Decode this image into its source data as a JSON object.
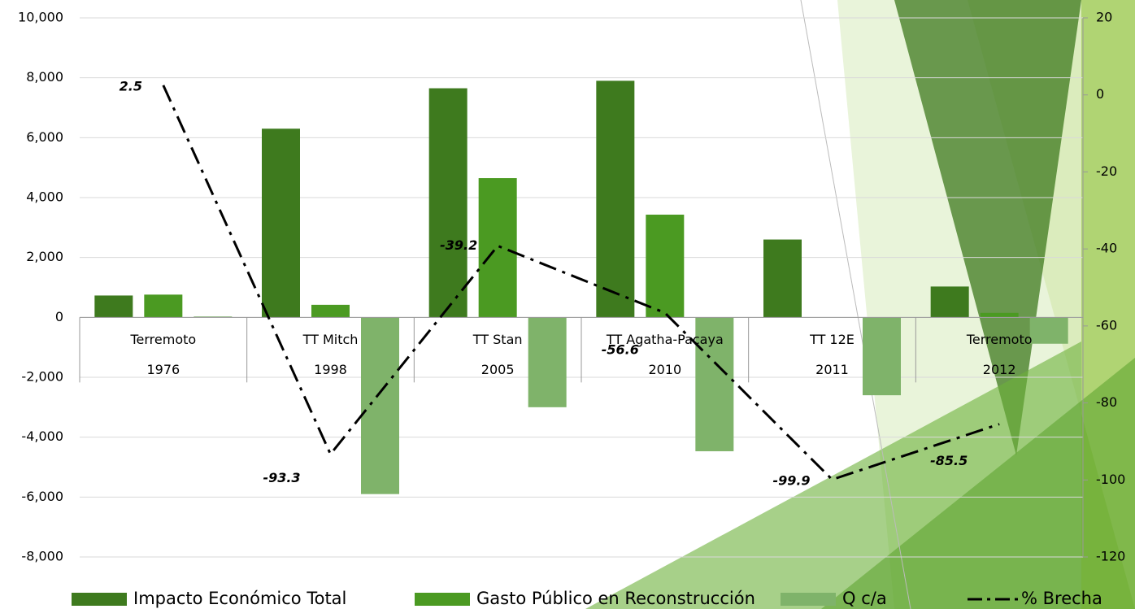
{
  "chart_data": {
    "type": "bar",
    "categories": [
      [
        "Terremoto",
        "1976"
      ],
      [
        "TT Mitch",
        "1998"
      ],
      [
        "TT Stan",
        "2005"
      ],
      [
        "TT Agatha-Pacaya",
        "2010"
      ],
      [
        "TT 12E",
        "2011"
      ],
      [
        "Terremoto",
        "2012"
      ]
    ],
    "series": [
      {
        "name": "Impacto Económico Total",
        "color": "#3e7a1e",
        "values": [
          730,
          6300,
          7650,
          7900,
          2600,
          1030
        ]
      },
      {
        "name": "Gasto Público en Reconstrucción",
        "color": "#4b9a22",
        "values": [
          760,
          420,
          4650,
          3430,
          0,
          150
        ]
      },
      {
        "name": "Q c/a",
        "color": "#7fb36a",
        "values": [
          30,
          -5900,
          -3000,
          -4470,
          -2600,
          -880
        ]
      },
      {
        "name": "% Brecha",
        "type": "line",
        "axis": "y2",
        "color": "#000000",
        "values": [
          2.5,
          -93.3,
          -39.2,
          -56.6,
          -99.9,
          -85.5
        ]
      }
    ],
    "ylim": [
      -8000,
      10000
    ],
    "yticks": [
      {
        "value": -8000,
        "label": "-8,000"
      },
      {
        "value": -6000,
        "label": "-6,000"
      },
      {
        "value": -4000,
        "label": "-4,000"
      },
      {
        "value": -2000,
        "label": "-2,000"
      },
      0,
      {
        "value": 2000,
        "label": "2,000"
      },
      {
        "value": 4000,
        "label": "4,000"
      },
      {
        "value": 6000,
        "label": "6,000"
      },
      {
        "value": 8000,
        "label": "8,000"
      },
      {
        "value": 10000,
        "label": "10,000"
      }
    ],
    "y2lim": [
      -120,
      20
    ],
    "y2ticks": [
      -120,
      -100,
      -80,
      -60,
      -40,
      -20,
      0,
      20
    ],
    "grid": true,
    "legend": "bottom"
  }
}
